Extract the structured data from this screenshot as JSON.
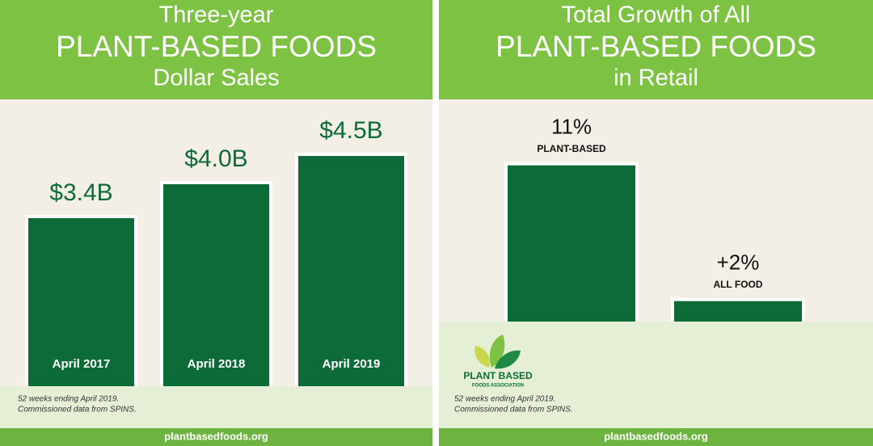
{
  "chart_data": [
    {
      "type": "bar",
      "title": [
        "Three-year",
        "PLANT-BASED FOODS",
        "Dollar Sales"
      ],
      "categories": [
        "April 2017",
        "April 2018",
        "April 2019"
      ],
      "values": [
        3.4,
        4.0,
        4.5
      ],
      "value_labels": [
        "$3.4B",
        "$4.0B",
        "$4.5B"
      ],
      "color": "#0d6b38",
      "ylim": [
        0,
        5
      ],
      "note": [
        "52 weeks ending April 2019.",
        "Commissioned data from SPINS."
      ],
      "source": "plantbasedfoods.org"
    },
    {
      "type": "bar",
      "title": [
        "Total Growth of All",
        "PLANT-BASED FOODS",
        "in Retail"
      ],
      "categories": [
        "PLANT-BASED",
        "ALL FOOD"
      ],
      "values": [
        11,
        2
      ],
      "value_labels": [
        "11%",
        "+2%"
      ],
      "color": "#0d6b38",
      "ylim": [
        0,
        12
      ],
      "note": [
        "52 weeks ending April 2019.",
        "Commissioned data from SPINS."
      ],
      "source": "plantbasedfoods.org"
    }
  ],
  "logo": {
    "name": "PLANT BASED",
    "subtitle": "FOODS ASSOCIATION"
  }
}
